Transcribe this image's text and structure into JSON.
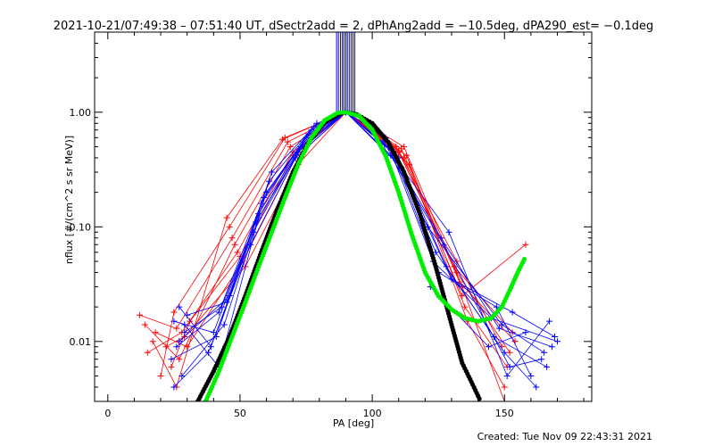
{
  "chart_data": {
    "type": "scatter",
    "title": "2021-10-21/07:49:38 – 07:51:40 UT, dSectr2add = 2, dPhAng2add = −10.5deg, dPA290_est= −0.1deg",
    "xlabel": "PA [deg]",
    "ylabel": "nflux [#/(cm^2 s sr MeV)]",
    "xlim": [
      -5,
      183
    ],
    "ylim": [
      0.003,
      5.0
    ],
    "yscale": "log",
    "grid": false,
    "x_ticks": [
      {
        "value": 0,
        "label": "0"
      },
      {
        "value": 50,
        "label": "50"
      },
      {
        "value": 100,
        "label": "100"
      },
      {
        "value": 150,
        "label": "150"
      }
    ],
    "y_ticks": [
      {
        "value": 0.01,
        "label": "0.01"
      },
      {
        "value": 0.1,
        "label": "0.10"
      },
      {
        "value": 1.0,
        "label": "1.00"
      }
    ],
    "colors": {
      "red_series": "#ff0000",
      "blue_series": "#0000ff",
      "black_fit": "#000000",
      "green_fit": "#00ee00"
    },
    "series": [
      {
        "color": "red",
        "marker": "plus",
        "lines": [
          {
            "x": [
              12,
              26,
              47,
              68,
              90,
              112,
              134,
              150
            ],
            "y": [
              0.017,
              0.013,
              0.08,
              0.55,
              1.0,
              0.5,
              0.03,
              0.003
            ]
          },
          {
            "x": [
              15,
              28,
              49,
              70,
              90,
              110,
              132,
              152
            ],
            "y": [
              0.008,
              0.012,
              0.06,
              0.45,
              1.0,
              0.45,
              0.04,
              0.008
            ]
          },
          {
            "x": [
              18,
              30,
              51,
              71,
              90,
              111,
              133,
              154
            ],
            "y": [
              0.012,
              0.009,
              0.05,
              0.4,
              1.0,
              0.48,
              0.033,
              0.01
            ]
          },
          {
            "x": [
              20,
              25,
              46,
              67,
              90,
              113,
              135,
              151
            ],
            "y": [
              0.005,
              0.018,
              0.1,
              0.6,
              1.0,
              0.42,
              0.02,
              0.006
            ]
          },
          {
            "x": [
              22,
              29,
              52,
              72,
              90,
              114,
              136,
              150
            ],
            "y": [
              0.009,
              0.011,
              0.045,
              0.35,
              1.0,
              0.35,
              0.015,
              0.004
            ]
          },
          {
            "x": [
              14,
              27,
              48,
              69,
              90,
              109,
              131,
              153
            ],
            "y": [
              0.014,
              0.007,
              0.07,
              0.5,
              1.0,
              0.5,
              0.045,
              0.012
            ]
          },
          {
            "x": [
              24,
              31,
              50,
              70,
              90,
              112,
              134,
              158
            ],
            "y": [
              0.006,
              0.015,
              0.055,
              0.42,
              1.0,
              0.4,
              0.025,
              0.07
            ]
          },
          {
            "x": [
              17,
              26,
              45,
              66,
              90,
              110,
              132,
              149
            ],
            "y": [
              0.01,
              0.004,
              0.12,
              0.58,
              1.0,
              0.46,
              0.05,
              0.009
            ]
          }
        ]
      },
      {
        "color": "blue",
        "marker": "plus",
        "lines": [
          {
            "x": [
              25,
              40,
              57,
              74,
              90,
              108,
              124,
              146,
              166
            ],
            "y": [
              0.015,
              0.012,
              0.13,
              0.55,
              1.0,
              0.45,
              0.06,
              0.011,
              0.006
            ]
          },
          {
            "x": [
              26,
              42,
              58,
              75,
              90,
              106,
              126,
              148,
              168
            ],
            "y": [
              0.009,
              0.018,
              0.16,
              0.6,
              1.0,
              0.5,
              0.08,
              0.013,
              0.009
            ]
          },
          {
            "x": [
              28,
              44,
              60,
              76,
              90,
              110,
              128,
              150,
              162
            ],
            "y": [
              0.005,
              0.014,
              0.2,
              0.65,
              1.0,
              0.4,
              0.045,
              0.008,
              0.004
            ]
          },
          {
            "x": [
              27,
              39,
              55,
              73,
              90,
              105,
              123,
              145,
              170
            ],
            "y": [
              0.02,
              0.009,
              0.09,
              0.5,
              1.0,
              0.6,
              0.05,
              0.016,
              0.01
            ]
          },
          {
            "x": [
              29,
              43,
              56,
              72,
              90,
              107,
              127,
              152,
              164
            ],
            "y": [
              0.012,
              0.02,
              0.11,
              0.45,
              1.0,
              0.42,
              0.07,
              0.006,
              0.007
            ]
          },
          {
            "x": [
              24,
              41,
              59,
              77,
              90,
              109,
              125,
              147,
              160
            ],
            "y": [
              0.007,
              0.011,
              0.18,
              0.7,
              1.0,
              0.38,
              0.04,
              0.02,
              0.005
            ]
          },
          {
            "x": [
              30,
              45,
              61,
              78,
              90,
              104,
              122,
              144,
              158
            ],
            "y": [
              0.017,
              0.022,
              0.25,
              0.75,
              1.0,
              0.55,
              0.03,
              0.009,
              0.012
            ]
          },
          {
            "x": [
              25,
              38,
              54,
              71,
              90,
              111,
              129,
              151,
              167
            ],
            "y": [
              0.004,
              0.008,
              0.07,
              0.4,
              1.0,
              0.33,
              0.09,
              0.005,
              0.015
            ]
          },
          {
            "x": [
              27,
              46,
              62,
              79,
              90,
              103,
              121,
              149,
              165
            ],
            "y": [
              0.01,
              0.025,
              0.3,
              0.8,
              1.0,
              0.65,
              0.1,
              0.014,
              0.008
            ]
          },
          {
            "x": [
              29,
              42,
              57,
              74,
              90,
              108,
              130,
              153,
              169
            ],
            "y": [
              0.014,
              0.006,
              0.12,
              0.52,
              1.0,
              0.44,
              0.035,
              0.018,
              0.011
            ]
          }
        ]
      }
    ],
    "fits": [
      {
        "name": "",
        "color": "black",
        "marker": "dot",
        "x": [
          34,
          40,
          46,
          52,
          58,
          64,
          70,
          76,
          82,
          88,
          90,
          94,
          100,
          106,
          112,
          118,
          124,
          130,
          134,
          138,
          141
        ],
        "y": [
          0.003,
          0.0055,
          0.011,
          0.025,
          0.06,
          0.14,
          0.3,
          0.55,
          0.82,
          0.98,
          1.0,
          0.96,
          0.8,
          0.55,
          0.3,
          0.13,
          0.045,
          0.014,
          0.0065,
          0.0042,
          0.003
        ]
      },
      {
        "name": "",
        "color": "green",
        "marker": "dot",
        "x": [
          37,
          42,
          47,
          52,
          57,
          62,
          67,
          72,
          77,
          82,
          87,
          90,
          95,
          100,
          105,
          110,
          115,
          120,
          125,
          130,
          135,
          140,
          145,
          149,
          152,
          155,
          158
        ],
        "y": [
          0.003,
          0.0055,
          0.011,
          0.022,
          0.045,
          0.09,
          0.18,
          0.35,
          0.6,
          0.85,
          0.99,
          1.0,
          0.93,
          0.7,
          0.42,
          0.2,
          0.085,
          0.04,
          0.025,
          0.019,
          0.016,
          0.015,
          0.016,
          0.02,
          0.028,
          0.04,
          0.055
        ]
      }
    ],
    "vertical_lines": {
      "color": "blue",
      "x": [
        86.5,
        87.2,
        88.0,
        88.7,
        89.3,
        90.0,
        90.6,
        91.3,
        92.0,
        92.7,
        93.4
      ],
      "y_from": 1.0,
      "y_to": 5.0
    }
  },
  "footer": {
    "created": "Created: Tue Nov 09 22:43:31 2021"
  }
}
